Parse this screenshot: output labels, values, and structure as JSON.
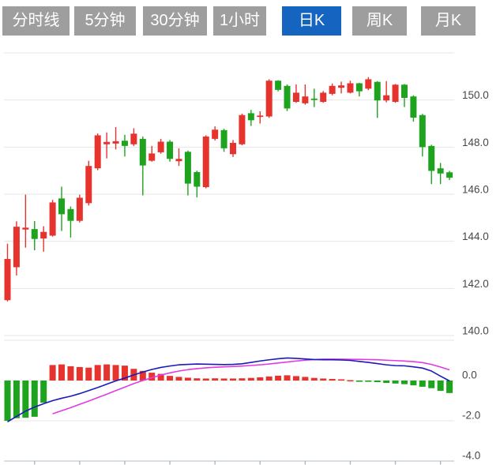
{
  "tabs": [
    {
      "key": "timeline",
      "label": "分时线",
      "active": false
    },
    {
      "key": "5min",
      "label": "5分钟",
      "active": false
    },
    {
      "key": "30min",
      "label": "30分钟",
      "active": false
    },
    {
      "key": "1hour",
      "label": "1小时",
      "active": false
    },
    {
      "key": "daily-k",
      "label": "日K",
      "active": true
    },
    {
      "key": "weekly-k",
      "label": "周K",
      "active": false
    },
    {
      "key": "monthly-k",
      "label": "月K",
      "active": false
    }
  ],
  "colors": {
    "tab_background": "#9e9e9e",
    "tab_active_background": "#1565c0",
    "tab_text": "#ffffff",
    "up": "#e7332d",
    "down": "#1ea31e",
    "dif_line": "#1a1ab8",
    "dea_line": "#e23ae2",
    "gridline": "#e6e6e6",
    "axis_line": "#ccd3da",
    "axis_tick": "#a9b6c2",
    "axis_label": "#474747",
    "background": "#ffffff"
  },
  "chart_data": {
    "type": "candlestick",
    "title": "",
    "indicator": "MACD",
    "legend": [],
    "grid": true,
    "main_panel": {
      "ylim": [
        140,
        152
      ],
      "grid_values": [
        152,
        150,
        148,
        146,
        144,
        142,
        140
      ],
      "yticks": [
        {
          "value": 150,
          "label": "150.0"
        },
        {
          "value": 148,
          "label": "148.0"
        },
        {
          "value": 146,
          "label": "146.0"
        },
        {
          "value": 144,
          "label": "144.0"
        },
        {
          "value": 142,
          "label": "142.0"
        },
        {
          "value": 140,
          "label": "140.0"
        }
      ],
      "candles_format": [
        "open",
        "high",
        "low",
        "close"
      ],
      "candles": [
        [
          141.5,
          143.9,
          141.45,
          143.25
        ],
        [
          142.9,
          144.85,
          142.55,
          144.62
        ],
        [
          144.5,
          145.98,
          143.73,
          144.58
        ],
        [
          144.52,
          144.86,
          143.62,
          144.1
        ],
        [
          144.12,
          144.64,
          143.56,
          144.4
        ],
        [
          144.24,
          145.76,
          144.2,
          145.65
        ],
        [
          145.82,
          146.32,
          144.44,
          145.15
        ],
        [
          145.37,
          145.48,
          144.16,
          144.87
        ],
        [
          144.87,
          145.98,
          144.8,
          145.85
        ],
        [
          145.62,
          147.42,
          145.52,
          147.2
        ],
        [
          147.1,
          148.58,
          147.02,
          148.5
        ],
        [
          148.12,
          148.62,
          147.52,
          148.22
        ],
        [
          148.15,
          148.85,
          147.9,
          148.25
        ],
        [
          148.27,
          148.52,
          147.6,
          148.05
        ],
        [
          148.12,
          148.8,
          148.05,
          148.57
        ],
        [
          148.35,
          148.45,
          145.95,
          147.22
        ],
        [
          147.42,
          148.05,
          147.38,
          147.73
        ],
        [
          147.78,
          148.35,
          147.72,
          148.23
        ],
        [
          148.23,
          148.3,
          147.38,
          147.5
        ],
        [
          147.4,
          147.95,
          147.2,
          147.5
        ],
        [
          147.8,
          147.85,
          145.95,
          146.45
        ],
        [
          146.94,
          147.0,
          145.87,
          146.32
        ],
        [
          146.3,
          148.5,
          146.25,
          148.45
        ],
        [
          148.35,
          148.88,
          148.28,
          148.74
        ],
        [
          148.72,
          148.78,
          147.8,
          147.95
        ],
        [
          147.7,
          148.3,
          147.58,
          148.18
        ],
        [
          148.12,
          149.42,
          148.08,
          149.36
        ],
        [
          149.44,
          149.58,
          148.9,
          149.14
        ],
        [
          149.28,
          149.52,
          149.0,
          149.34
        ],
        [
          149.3,
          150.88,
          149.24,
          150.82
        ],
        [
          150.82,
          150.84,
          150.37,
          150.43
        ],
        [
          150.6,
          150.66,
          149.53,
          149.64
        ],
        [
          149.92,
          150.66,
          149.88,
          150.31
        ],
        [
          149.86,
          150.66,
          149.8,
          150.15
        ],
        [
          150.06,
          150.48,
          149.7,
          150.0
        ],
        [
          149.92,
          150.38,
          149.88,
          150.31
        ],
        [
          150.26,
          150.7,
          150.2,
          150.6
        ],
        [
          150.52,
          150.78,
          150.28,
          150.62
        ],
        [
          150.31,
          150.82,
          150.28,
          150.71
        ],
        [
          150.71,
          150.73,
          150.15,
          150.37
        ],
        [
          150.48,
          150.97,
          150.42,
          150.88
        ],
        [
          150.77,
          150.8,
          149.24,
          149.98
        ],
        [
          149.98,
          150.8,
          149.9,
          150.2
        ],
        [
          149.92,
          150.68,
          149.88,
          150.65
        ],
        [
          150.65,
          150.68,
          149.7,
          150.09
        ],
        [
          150.15,
          150.2,
          149.08,
          149.25
        ],
        [
          149.36,
          149.41,
          147.6,
          148.0
        ],
        [
          148.05,
          148.1,
          146.43,
          146.99
        ],
        [
          147.1,
          147.33,
          146.43,
          146.88
        ],
        [
          146.93,
          146.99,
          146.6,
          146.7
        ]
      ]
    },
    "macd_panel": {
      "ylim": [
        -4,
        2
      ],
      "grid_values": [
        2,
        0,
        -2
      ],
      "axis_value": -4,
      "yticks": [
        {
          "value": 0,
          "label": "0.0"
        },
        {
          "value": -2,
          "label": "-2.0"
        },
        {
          "value": -4,
          "label": "-4.0"
        }
      ],
      "histogram": [
        -2.0,
        -1.87,
        -1.85,
        -1.8,
        -1.1,
        0.77,
        0.8,
        0.71,
        0.67,
        0.64,
        0.77,
        0.8,
        0.77,
        0.74,
        0.58,
        0.48,
        0.39,
        0.33,
        0.23,
        0.18,
        0.14,
        0.11,
        0.1,
        0.11,
        0.1,
        0.1,
        0.11,
        0.13,
        0.16,
        0.2,
        0.24,
        0.26,
        0.22,
        0.18,
        0.13,
        0.1,
        0.08,
        0.06,
        0.02,
        -0.01,
        -0.06,
        -0.08,
        -0.12,
        -0.15,
        -0.18,
        -0.24,
        -0.31,
        -0.38,
        -0.51,
        -0.62
      ],
      "dif": [
        -2.05,
        -1.78,
        -1.52,
        -1.32,
        -1.15,
        -1.0,
        -0.88,
        -0.78,
        -0.65,
        -0.5,
        -0.35,
        -0.18,
        -0.02,
        0.12,
        0.28,
        0.42,
        0.55,
        0.65,
        0.72,
        0.78,
        0.8,
        0.82,
        0.81,
        0.8,
        0.79,
        0.8,
        0.83,
        0.9,
        0.97,
        1.03,
        1.08,
        1.12,
        1.1,
        1.07,
        1.04,
        1.03,
        1.03,
        1.02,
        1.0,
        0.95,
        0.9,
        0.84,
        0.78,
        0.74,
        0.73,
        0.68,
        0.62,
        0.47,
        0.22,
        -0.02
      ],
      "dea": [
        null,
        null,
        null,
        null,
        null,
        -1.65,
        -1.5,
        -1.35,
        -1.18,
        -1.02,
        -0.85,
        -0.68,
        -0.5,
        -0.33,
        -0.15,
        0.0,
        0.14,
        0.27,
        0.38,
        0.47,
        0.54,
        0.59,
        0.63,
        0.66,
        0.68,
        0.7,
        0.72,
        0.75,
        0.78,
        0.82,
        0.87,
        0.92,
        0.97,
        1.01,
        1.04,
        1.06,
        1.06,
        1.06,
        1.05,
        1.05,
        1.04,
        1.03,
        1.01,
        0.99,
        0.97,
        0.94,
        0.89,
        0.8,
        0.67,
        0.53
      ]
    },
    "xaxis": {
      "tick_indices": [
        3,
        8,
        13,
        18,
        23,
        28,
        33,
        38,
        43,
        48
      ],
      "labels": []
    }
  }
}
